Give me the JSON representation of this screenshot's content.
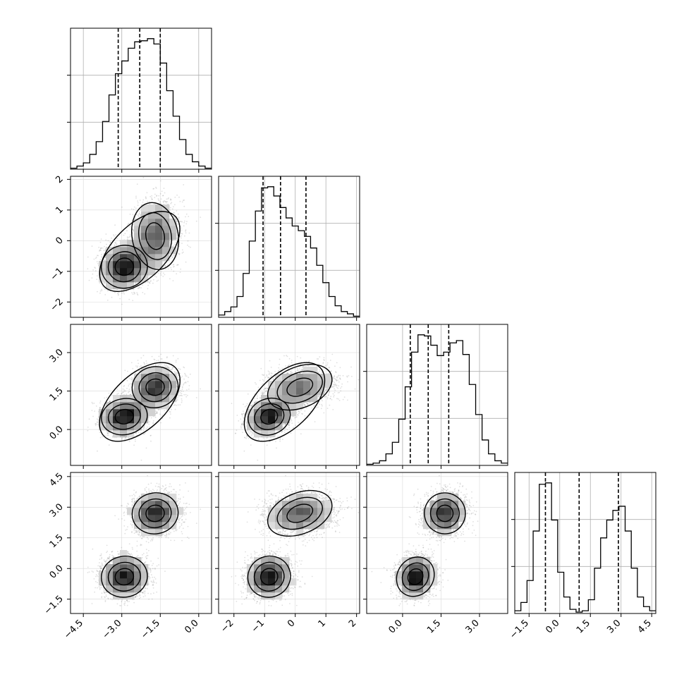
{
  "chart_data": {
    "type": "corner",
    "description_of_layout": "lower-triangular corner plot of 4 parameters",
    "dimensions": 4,
    "quantiles": [
      0.16,
      0.5,
      0.84
    ],
    "ranges": [
      [
        -5.0,
        0.5
      ],
      [
        -2.5,
        2.1
      ],
      [
        -1.4,
        4.1
      ],
      [
        -2.2,
        4.7
      ]
    ],
    "ticks": [
      [
        "-4.5",
        "-3.0",
        "-1.5",
        "0.0"
      ],
      [
        "-2",
        "-1",
        "0",
        "1",
        "2"
      ],
      [
        "0.0",
        "1.5",
        "3.0"
      ],
      [
        "-1.5",
        "0.0",
        "1.5",
        "3.0",
        "4.5"
      ]
    ],
    "histograms": [
      {
        "bins_from": -5.0,
        "bins_to": 0.5,
        "quantile_values": [
          -3.14,
          -2.3,
          -1.5
        ],
        "counts": [
          1,
          3,
          6,
          14,
          26,
          45,
          70,
          90,
          102,
          114,
          120,
          121,
          123,
          118,
          100,
          74,
          50,
          28,
          14,
          7,
          3,
          1
        ]
      },
      {
        "bins_from": -2.5,
        "bins_to": 2.1,
        "quantile_values": [
          -1.05,
          -0.48,
          0.35
        ],
        "counts": [
          2,
          5,
          9,
          18,
          38,
          66,
          92,
          112,
          113,
          105,
          95,
          86,
          79,
          75,
          70,
          60,
          45,
          30,
          18,
          10,
          5,
          3,
          1
        ]
      },
      {
        "bins_from": -1.4,
        "bins_to": 4.1,
        "quantile_values": [
          0.3,
          1.0,
          1.8
        ],
        "counts": [
          1,
          2,
          4,
          10,
          20,
          40,
          68,
          98,
          113,
          112,
          104,
          95,
          98,
          106,
          108,
          96,
          70,
          44,
          22,
          10,
          4,
          2
        ]
      },
      {
        "bins_from": -2.2,
        "bins_to": 4.7,
        "quantile_values": [
          -0.7,
          0.95,
          2.87
        ],
        "counts": [
          2,
          8,
          24,
          60,
          94,
          95,
          68,
          30,
          12,
          3,
          1,
          2,
          10,
          33,
          55,
          68,
          75,
          78,
          60,
          33,
          12,
          5,
          2
        ]
      }
    ],
    "grid": true
  }
}
